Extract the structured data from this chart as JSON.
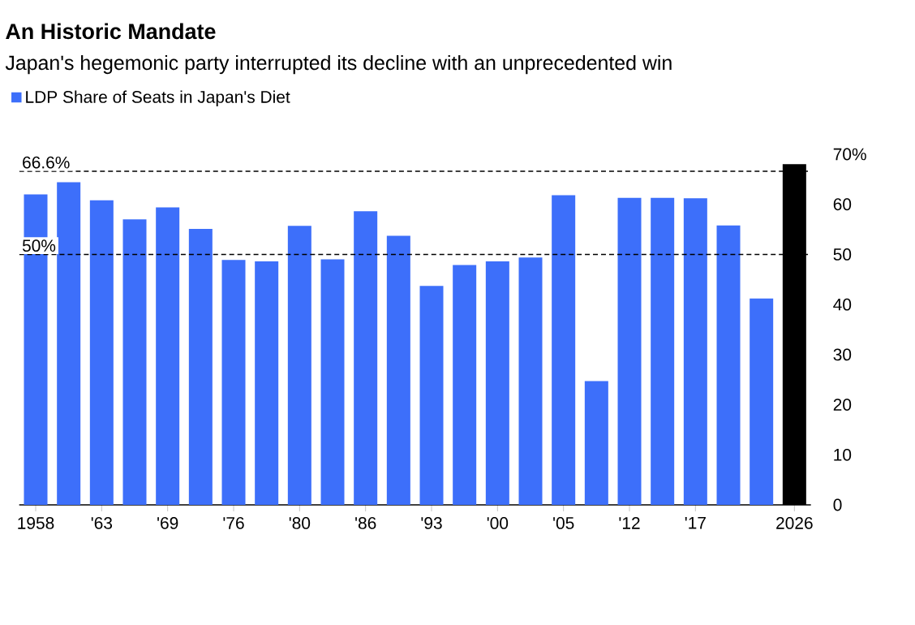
{
  "chart_data": {
    "type": "bar",
    "title": "An Historic Mandate",
    "subtitle": "Japan's hegemonic party interrupted its decline with an unprecedented win",
    "categories": [
      "1958",
      null,
      "'63",
      null,
      "'69",
      null,
      "'76",
      null,
      "'80",
      null,
      "'86",
      null,
      "'93",
      null,
      "'00",
      null,
      "'05",
      null,
      "'12",
      null,
      "'17",
      null,
      null,
      "2026"
    ],
    "series": [
      {
        "name": "LDP Share of Seats in Japan's Diet",
        "color": "#3d6ffa",
        "values": [
          62.0,
          64.4,
          60.8,
          57.0,
          59.4,
          55.1,
          48.9,
          48.6,
          55.7,
          49.0,
          58.6,
          53.7,
          43.7,
          47.9,
          48.6,
          49.4,
          61.8,
          24.7,
          61.3,
          61.3,
          61.2,
          55.8,
          41.2,
          68.0
        ],
        "colors": [
          "#3d6ffa",
          "#3d6ffa",
          "#3d6ffa",
          "#3d6ffa",
          "#3d6ffa",
          "#3d6ffa",
          "#3d6ffa",
          "#3d6ffa",
          "#3d6ffa",
          "#3d6ffa",
          "#3d6ffa",
          "#3d6ffa",
          "#3d6ffa",
          "#3d6ffa",
          "#3d6ffa",
          "#3d6ffa",
          "#3d6ffa",
          "#3d6ffa",
          "#3d6ffa",
          "#3d6ffa",
          "#3d6ffa",
          "#3d6ffa",
          "#3d6ffa",
          "#000000"
        ]
      }
    ],
    "ylim": [
      0,
      70
    ],
    "yticks": [
      0,
      10,
      20,
      30,
      40,
      50,
      60,
      {
        "value": 70,
        "label": "70%"
      }
    ],
    "ref_lines": [
      {
        "axis": "y",
        "value": 66.6,
        "label": "66.6%",
        "line_style": "dashed",
        "color": "#000000"
      },
      {
        "axis": "y",
        "value": 50,
        "label": "50%",
        "line_style": "dashed",
        "color": "#000000"
      }
    ],
    "legend": "top left",
    "grid": false
  }
}
